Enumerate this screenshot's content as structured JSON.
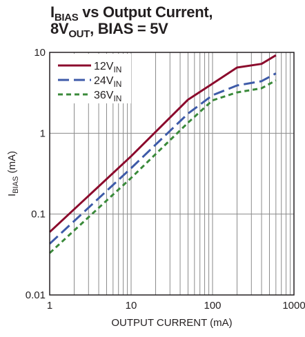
{
  "title": {
    "line1_main": "I",
    "line1_sub": "BIAS",
    "line1_rest": " vs Output Current,",
    "line2_main": "8V",
    "line2_sub": "OUT",
    "line2_rest": ", BIAS = 5V"
  },
  "chart_data": {
    "type": "line",
    "xscale": "log",
    "yscale": "log",
    "xlim": [
      1,
      1000
    ],
    "ylim": [
      0.01,
      10
    ],
    "grid": true,
    "legend_position": "top-left",
    "xlabel": "OUTPUT CURRENT (mA)",
    "ylabel_main": "I",
    "ylabel_sub": "BIAS",
    "ylabel_rest": " (mA)",
    "xticks": [
      "1",
      "10",
      "100",
      "1000"
    ],
    "yticks": [
      "0.01",
      "0.1",
      "1",
      "10"
    ],
    "series": [
      {
        "name": "12V",
        "name_sub": "IN",
        "color": "#8b0a2c",
        "dash": "solid",
        "x": [
          1,
          10,
          50,
          100,
          200,
          400,
          600
        ],
        "y": [
          0.06,
          0.52,
          2.6,
          4.1,
          6.5,
          7.2,
          9.2
        ]
      },
      {
        "name": "24V",
        "name_sub": "IN",
        "color": "#3d5aa8",
        "dash": "long",
        "x": [
          1,
          10,
          50,
          100,
          200,
          400,
          600
        ],
        "y": [
          0.043,
          0.37,
          1.75,
          2.95,
          3.9,
          4.4,
          5.5
        ]
      },
      {
        "name": "36V",
        "name_sub": "IN",
        "color": "#3a8a3a",
        "dash": "short",
        "x": [
          1,
          10,
          50,
          100,
          200,
          400,
          600
        ],
        "y": [
          0.033,
          0.28,
          1.35,
          2.55,
          3.2,
          3.6,
          4.5
        ]
      }
    ]
  }
}
